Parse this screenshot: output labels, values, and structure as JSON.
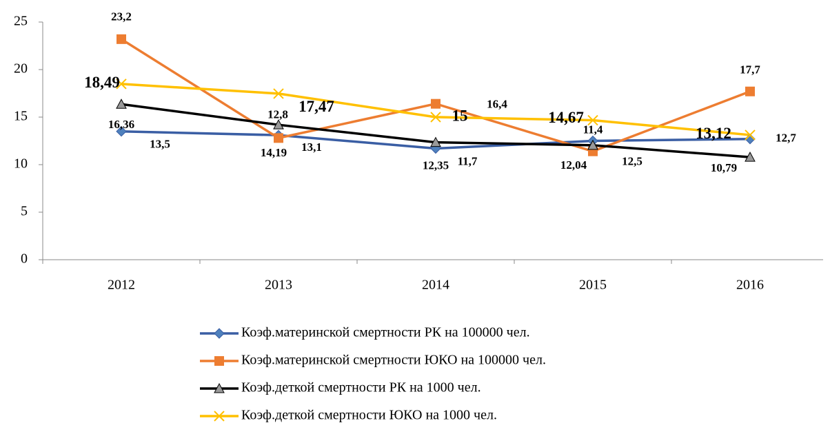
{
  "chart_data": {
    "type": "line",
    "categories": [
      "2012",
      "2013",
      "2014",
      "2015",
      "2016"
    ],
    "ylim": [
      0,
      25
    ],
    "yticks": [
      0,
      5,
      10,
      15,
      20,
      25
    ],
    "legend": "bottom",
    "series": [
      {
        "name": "Коэф.материнской смертности РК на 100000 чел.",
        "color": "#3a5ea4",
        "marker": "diamond",
        "values": [
          13.5,
          13.1,
          11.7,
          12.5,
          12.7
        ],
        "value_labels": [
          "13,5",
          "13,1",
          "11,7",
          "12,5",
          "12,7"
        ]
      },
      {
        "name": "Коэф.материнской смертности ЮКО на 100000 чел.",
        "color": "#ed7d31",
        "marker": "square",
        "values": [
          23.2,
          12.8,
          16.4,
          11.4,
          17.7
        ],
        "value_labels": [
          "23,2",
          "12,8",
          "16,4",
          "11,4",
          "17,7"
        ]
      },
      {
        "name": "Коэф.деткой смертности РК на 1000 чел.",
        "color": "#000000",
        "marker": "triangle",
        "values": [
          16.36,
          14.19,
          12.35,
          12.04,
          10.79
        ],
        "value_labels": [
          "16,36",
          "14,19",
          "12,35",
          "12,04",
          "10,79"
        ]
      },
      {
        "name": "Коэф.деткой смертности ЮКО на 1000 чел.",
        "color": "#ffc000",
        "marker": "x",
        "values": [
          18.49,
          17.47,
          15,
          14.67,
          13.12
        ],
        "value_labels": [
          "18,49",
          "17,47",
          "15",
          "14,67",
          "13,12"
        ]
      }
    ]
  }
}
